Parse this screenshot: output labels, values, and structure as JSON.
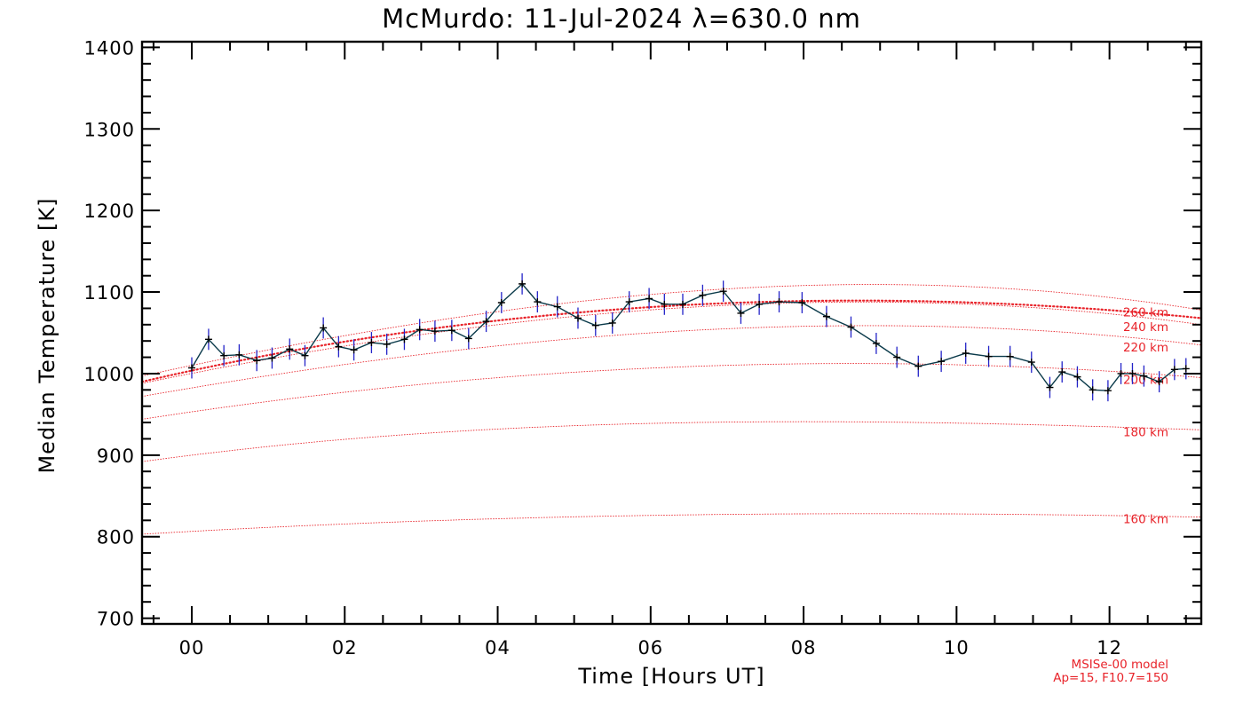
{
  "chart_data": {
    "type": "line",
    "title": "McMurdo: 11-Jul-2024 λ=630.0 nm",
    "xlabel": "Time [Hours UT]",
    "ylabel": "Median Temperature [K]",
    "xlim": [
      -0.65,
      13.2
    ],
    "ylim": [
      693,
      1407
    ],
    "x_ticks": [
      0,
      2,
      4,
      6,
      8,
      10,
      12
    ],
    "x_tick_labels": [
      "00",
      "02",
      "04",
      "06",
      "08",
      "10",
      "12"
    ],
    "y_ticks": [
      700,
      800,
      900,
      1000,
      1100,
      1200,
      1300,
      1400
    ],
    "y_tick_labels": [
      "700",
      "800",
      "900",
      "1000",
      "1100",
      "1200",
      "1300",
      "1400"
    ],
    "grid": false,
    "series": [
      {
        "x": [
          0.0,
          0.22,
          0.42,
          0.62,
          0.85,
          1.05,
          1.28,
          1.48,
          1.72,
          1.92,
          2.12,
          2.35,
          2.55,
          2.78,
          2.98,
          3.18,
          3.4,
          3.62,
          3.85,
          4.05,
          4.32,
          4.52,
          4.78,
          5.05,
          5.28,
          5.5,
          5.72,
          5.98,
          6.18,
          6.42,
          6.68,
          6.95,
          7.18,
          7.42,
          7.68,
          7.98,
          8.3,
          8.62,
          8.95,
          9.22,
          9.5,
          9.8,
          10.12,
          10.42,
          10.7,
          10.98,
          11.22,
          11.38,
          11.58,
          11.78,
          11.98,
          12.15,
          12.3,
          12.45,
          12.65,
          12.85,
          13.0
        ],
        "y": [
          1007,
          1042,
          1022,
          1023,
          1016,
          1019,
          1030,
          1022,
          1056,
          1033,
          1029,
          1038,
          1036,
          1042,
          1054,
          1052,
          1053,
          1043,
          1064,
          1087,
          1110,
          1088,
          1082,
          1068,
          1059,
          1062,
          1088,
          1092,
          1085,
          1085,
          1096,
          1101,
          1074,
          1085,
          1088,
          1087,
          1070,
          1057,
          1037,
          1020,
          1009,
          1015,
          1025,
          1021,
          1021,
          1014,
          983,
          1002,
          996,
          980,
          979,
          1000,
          1000,
          997,
          990,
          1005,
          1006
        ],
        "error": [
          13,
          13,
          13,
          13,
          13,
          13,
          13,
          13,
          13,
          13,
          13,
          13,
          13,
          13,
          13,
          13,
          13,
          13,
          13,
          13,
          13,
          13,
          13,
          13,
          13,
          13,
          13,
          13,
          13,
          13,
          13,
          13,
          13,
          13,
          13,
          13,
          13,
          13,
          13,
          13,
          13,
          13,
          13,
          13,
          13,
          13,
          13,
          13,
          13,
          13,
          13,
          13,
          13,
          13,
          13,
          13,
          13
        ],
        "color": "#0a3a4a",
        "error_color": "#2323c8"
      }
    ],
    "model_curves": [
      {
        "label": "160 km",
        "x": [
          -0.65,
          4,
          8,
          13.2
        ],
        "y": [
          803,
          822,
          828,
          824
        ],
        "bold": false
      },
      {
        "label": "180 km",
        "x": [
          -0.65,
          4,
          8,
          13.2
        ],
        "y": [
          892,
          932,
          941,
          931
        ],
        "bold": false
      },
      {
        "label": "200 km",
        "x": [
          -0.65,
          4,
          8,
          13.2
        ],
        "y": [
          944,
          995,
          1012,
          995
        ],
        "bold": false
      },
      {
        "label": "220 km",
        "x": [
          -0.65,
          4,
          8,
          13.2
        ],
        "y": [
          972,
          1034,
          1058,
          1035
        ],
        "bold": false
      },
      {
        "label": "240 km",
        "x": [
          -0.65,
          4,
          8,
          13.2
        ],
        "y": [
          988,
          1060,
          1087,
          1060
        ],
        "bold": false
      },
      {
        "label": "",
        "x": [
          -0.65,
          4,
          8,
          13.2
        ],
        "y": [
          990,
          1065,
          1089,
          1068
        ],
        "bold": true
      },
      {
        "label": "260 km",
        "x": [
          -0.65,
          4,
          8,
          13.2
        ],
        "y": [
          997,
          1076,
          1108,
          1078
        ],
        "bold": false
      }
    ],
    "model_color": "#e8232a",
    "annotation": [
      "MSISe-00 model",
      "Ap=15, F10.7=150"
    ]
  }
}
